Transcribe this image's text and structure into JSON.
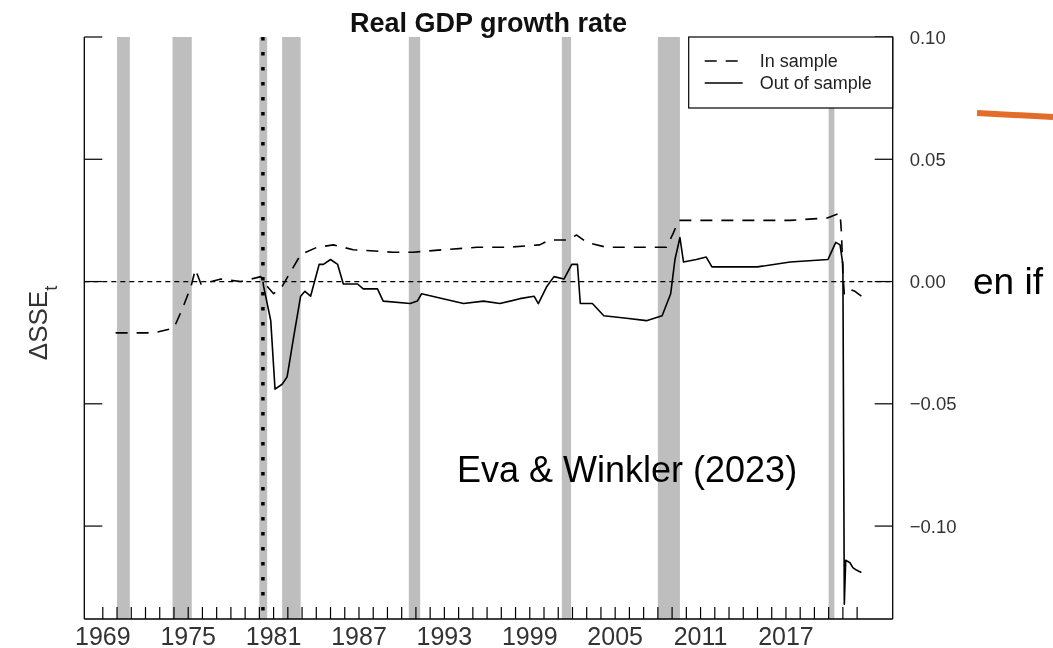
{
  "chart_data": {
    "type": "line",
    "title": "Real GDP growth rate",
    "ylabel": "ΔSSE$_{t}$",
    "annotations": [
      "Eva & Winkler (2023)",
      "en if"
    ],
    "xlim": [
      1967.7,
      2024.5
    ],
    "ylim": [
      -0.138,
      0.1
    ],
    "xticks": [
      1969,
      {
        "value": 1970,
        "label": null
      },
      {
        "value": 1971,
        "label": null
      },
      {
        "value": 1972,
        "label": null
      },
      {
        "value": 1973,
        "label": null
      },
      {
        "value": 1974,
        "label": null
      },
      1975,
      {
        "value": 1976,
        "label": null
      },
      {
        "value": 1977,
        "label": null
      },
      {
        "value": 1978,
        "label": null
      },
      {
        "value": 1979,
        "label": null
      },
      {
        "value": 1980,
        "label": null
      },
      1981,
      {
        "value": 1982,
        "label": null
      },
      {
        "value": 1983,
        "label": null
      },
      {
        "value": 1984,
        "label": null
      },
      {
        "value": 1985,
        "label": null
      },
      {
        "value": 1986,
        "label": null
      },
      1987,
      {
        "value": 1988,
        "label": null
      },
      {
        "value": 1989,
        "label": null
      },
      {
        "value": 1990,
        "label": null
      },
      {
        "value": 1991,
        "label": null
      },
      {
        "value": 1992,
        "label": null
      },
      1993,
      {
        "value": 1994,
        "label": null
      },
      {
        "value": 1995,
        "label": null
      },
      {
        "value": 1996,
        "label": null
      },
      {
        "value": 1997,
        "label": null
      },
      {
        "value": 1998,
        "label": null
      },
      1999,
      {
        "value": 2000,
        "label": null
      },
      {
        "value": 2001,
        "label": null
      },
      {
        "value": 2002,
        "label": null
      },
      {
        "value": 2003,
        "label": null
      },
      {
        "value": 2004,
        "label": null
      },
      2005,
      {
        "value": 2006,
        "label": null
      },
      {
        "value": 2007,
        "label": null
      },
      {
        "value": 2008,
        "label": null
      },
      {
        "value": 2009,
        "label": null
      },
      {
        "value": 2010,
        "label": null
      },
      2011,
      {
        "value": 2012,
        "label": null
      },
      {
        "value": 2013,
        "label": null
      },
      {
        "value": 2014,
        "label": null
      },
      {
        "value": 2015,
        "label": null
      },
      {
        "value": 2016,
        "label": null
      },
      2017,
      {
        "value": 2018,
        "label": null
      },
      {
        "value": 2019,
        "label": null
      },
      {
        "value": 2020,
        "label": null
      },
      {
        "value": 2021,
        "label": null
      },
      {
        "value": 2022,
        "label": null
      }
    ],
    "yticks": [
      {
        "value": -0.1,
        "label": "−0.10"
      },
      {
        "value": -0.05,
        "label": "−0.05"
      },
      {
        "value": 0,
        "label": "0.00"
      },
      {
        "value": 0.05,
        "label": "0.05"
      },
      {
        "value": 0.1,
        "label": "0.10"
      }
    ],
    "bands": [
      {
        "axis": "x",
        "from": 1970.0,
        "to": 1970.9,
        "color": "#bebebe"
      },
      {
        "axis": "x",
        "from": 1973.9,
        "to": 1975.25,
        "color": "#bebebe"
      },
      {
        "axis": "x",
        "from": 1980.0,
        "to": 1980.55,
        "color": "#bebebe"
      },
      {
        "axis": "x",
        "from": 1981.6,
        "to": 1982.9,
        "color": "#bebebe"
      },
      {
        "axis": "x",
        "from": 1990.5,
        "to": 1991.3,
        "color": "#bebebe"
      },
      {
        "axis": "x",
        "from": 2001.25,
        "to": 2001.9,
        "color": "#bebebe"
      },
      {
        "axis": "x",
        "from": 2008.0,
        "to": 2009.55,
        "color": "#bebebe"
      },
      {
        "axis": "x",
        "from": 2020.0,
        "to": 2020.4,
        "color": "#bebebe"
      }
    ],
    "ref_lines": [
      {
        "axis": "y",
        "value": 0,
        "color": "#000000",
        "line_style": "dashed"
      },
      {
        "axis": "x",
        "value": 1980.25,
        "color": "#000000",
        "line_style": "dotted"
      }
    ],
    "legend": "top right",
    "series": [
      {
        "name": "In sample",
        "color": "#000000",
        "line_style": "dashed",
        "x": [
          1969.9,
          1972.6,
          1974.0,
          1974.6,
          1975.2,
          1975.5,
          1975.9,
          1977.3,
          1978.7,
          1980.1,
          1980.4,
          1981.0,
          1981.6,
          1982.4,
          1982.9,
          1984.05,
          1985.2,
          1986.6,
          1989.4,
          1990.8,
          1992.9,
          1995.3,
          1997.4,
          1999.7,
          2000.4,
          2001.6,
          2002.3,
          2003.0,
          2004.4,
          2006.75,
          2008.6,
          2009.1,
          2009.45,
          2010.5,
          2011.4,
          2012.85,
          2015.0,
          2017.3,
          2019.9,
          2020.8,
          2020.9,
          2021.0,
          2021.1,
          2021.4,
          2021.85,
          2022.3
        ],
        "values": [
          -0.021,
          -0.021,
          -0.019,
          -0.011,
          -0.002,
          0.005,
          -0.001,
          0.001,
          0.0,
          0.002,
          -0.001,
          -0.005,
          -0.002,
          0.006,
          0.011,
          0.014,
          0.015,
          0.013,
          0.012,
          0.012,
          0.013,
          0.014,
          0.014,
          0.015,
          0.017,
          0.017,
          0.019,
          0.016,
          0.014,
          0.014,
          0.014,
          0.02,
          0.025,
          0.025,
          0.025,
          0.025,
          0.025,
          0.025,
          0.026,
          0.028,
          0.02,
          0.003,
          -0.005,
          -0.003,
          -0.004,
          -0.006
        ]
      },
      {
        "name": "Out of sample",
        "color": "#000000",
        "line_style": "solid",
        "x": [
          1980.25,
          1980.3,
          1980.8,
          1981.1,
          1981.6,
          1981.95,
          1982.4,
          1982.9,
          1983.2,
          1983.6,
          1984.2,
          1984.5,
          1985.0,
          1985.5,
          1985.9,
          1986.9,
          1987.3,
          1988.3,
          1988.7,
          1990.6,
          1991.1,
          1991.4,
          1992.9,
          1994.35,
          1995.75,
          1996.9,
          1998.3,
          1999.3,
          1999.6,
          2000.2,
          2000.7,
          2001.4,
          2001.95,
          2002.35,
          2002.55,
          2003.4,
          2004.2,
          2005.8,
          2007.2,
          2008.3,
          2008.9,
          2009.2,
          2009.55,
          2009.8,
          2010.7,
          2011.4,
          2011.8,
          2013.8,
          2015.0,
          2017.3,
          2019.95,
          2020.5,
          2020.8,
          2021.0,
          2021.1,
          2021.2,
          2021.5,
          2021.7,
          2021.95,
          2022.3
        ],
        "values": [
          0.0,
          -0.002,
          -0.016,
          -0.044,
          -0.042,
          -0.039,
          -0.023,
          -0.006,
          -0.004,
          -0.006,
          0.007,
          0.007,
          0.009,
          0.007,
          -0.001,
          -0.001,
          -0.003,
          -0.003,
          -0.008,
          -0.009,
          -0.008,
          -0.005,
          -0.007,
          -0.009,
          -0.008,
          -0.009,
          -0.007,
          -0.006,
          -0.009,
          -0.002,
          0.002,
          0.001,
          0.007,
          0.007,
          -0.009,
          -0.009,
          -0.014,
          -0.015,
          -0.016,
          -0.014,
          -0.005,
          0.009,
          0.018,
          0.008,
          0.009,
          0.01,
          0.006,
          0.006,
          0.006,
          0.008,
          0.009,
          0.016,
          0.015,
          0.007,
          -0.132,
          -0.114,
          -0.115,
          -0.117,
          -0.118,
          -0.119
        ]
      }
    ]
  }
}
